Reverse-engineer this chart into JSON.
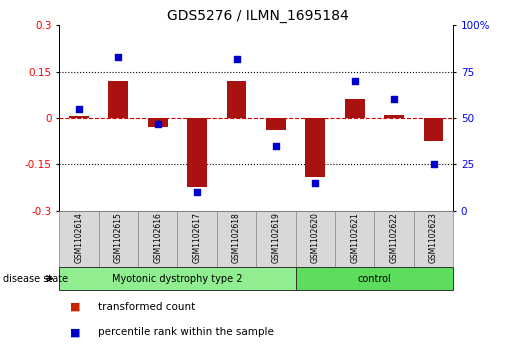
{
  "title": "GDS5276 / ILMN_1695184",
  "samples": [
    "GSM1102614",
    "GSM1102615",
    "GSM1102616",
    "GSM1102617",
    "GSM1102618",
    "GSM1102619",
    "GSM1102620",
    "GSM1102621",
    "GSM1102622",
    "GSM1102623"
  ],
  "transformed_count": [
    0.005,
    0.12,
    -0.03,
    -0.225,
    0.12,
    -0.04,
    -0.19,
    0.06,
    0.01,
    -0.075
  ],
  "percentile_rank": [
    55,
    83,
    47,
    10,
    82,
    35,
    15,
    70,
    60,
    25
  ],
  "ylim_left": [
    -0.3,
    0.3
  ],
  "ylim_right": [
    0,
    100
  ],
  "yticks_left": [
    -0.3,
    -0.15,
    0,
    0.15,
    0.3
  ],
  "yticks_right": [
    0,
    25,
    50,
    75,
    100
  ],
  "ytick_labels_right": [
    "0",
    "25",
    "50",
    "75",
    "100%"
  ],
  "dotted_lines": [
    -0.15,
    0.15
  ],
  "bar_color": "#aa1111",
  "scatter_color": "#0000cc",
  "dashed_zero_color": "#cc0000",
  "groups": [
    {
      "label": "Myotonic dystrophy type 2",
      "start": 0,
      "end": 6,
      "color": "#90ee90"
    },
    {
      "label": "control",
      "start": 6,
      "end": 10,
      "color": "#5cdd5c"
    }
  ],
  "disease_state_label": "disease state",
  "legend_items": [
    {
      "label": "transformed count",
      "color": "#cc2200"
    },
    {
      "label": "percentile rank within the sample",
      "color": "#0000cc"
    }
  ],
  "bar_width": 0.5,
  "background_color": "#ffffff",
  "plot_bg": "#ffffff",
  "xtick_box_color": "#d8d8d8",
  "n_disease": 6,
  "n_control": 4
}
